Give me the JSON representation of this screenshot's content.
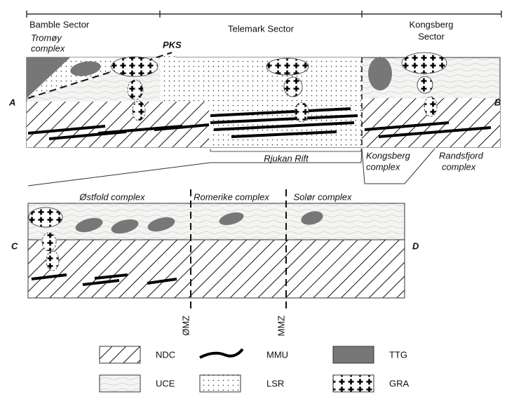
{
  "top_section": {
    "bamble_sector": "Bamble Sector",
    "telemark_sector": "Telemark Sector",
    "kongsberg_sector": [
      "Kongsberg",
      "Sector"
    ],
    "tromoy_complex": [
      "Tromøy",
      "complex"
    ],
    "pks": "PKS",
    "label_a": "A",
    "label_b": "B",
    "rjukan_rift": "Rjukan Rift",
    "kongsberg_complex": [
      "Kongsberg",
      "complex"
    ],
    "randsfjord_complex": [
      "Randsfjord",
      "complex"
    ]
  },
  "bottom_section": {
    "ostfold_complex": "Østfold complex",
    "romerike_complex": "Romerike complex",
    "solor_complex": "Solør complex",
    "label_c": "C",
    "label_d": "D",
    "omz": "ØMZ",
    "mmz": "MMZ"
  },
  "legend": [
    {
      "label": "NDC"
    },
    {
      "label": "MMU"
    },
    {
      "label": "TTG"
    },
    {
      "label": "UCE"
    },
    {
      "label": "LSR"
    },
    {
      "label": "GRA"
    }
  ]
}
